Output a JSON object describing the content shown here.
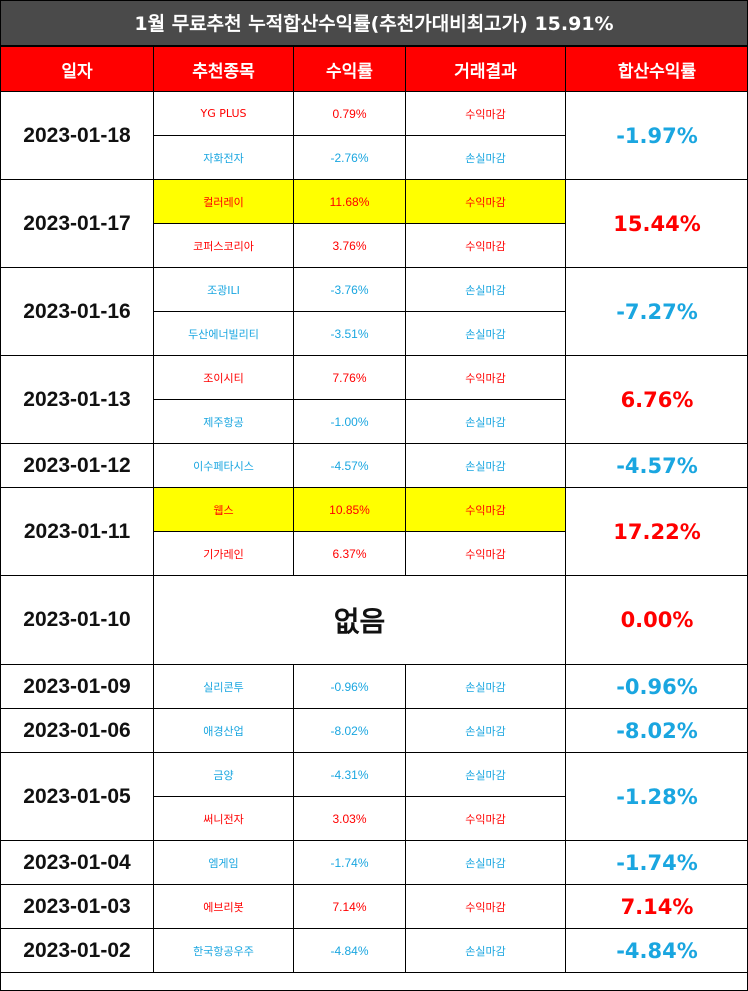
{
  "title": "1월 무료추천 누적합산수익률(추천가대비최고가) 15.91%",
  "headers": [
    "일자",
    "추천종목",
    "수익률",
    "거래결과",
    "합산수익률"
  ],
  "colors": {
    "header_bg": "#ff0000",
    "title_bg": "#4a4a4a",
    "gain": "#ff0000",
    "loss": "#1aa6e0",
    "highlight": "#ffff00"
  },
  "days": [
    {
      "date": "2023-01-18",
      "total": "-1.97%",
      "total_sign": "neg",
      "stocks": [
        {
          "name": "YG PLUS",
          "ret": "0.79%",
          "result": "수익마감",
          "sign": "pos",
          "highlight": false
        },
        {
          "name": "자화전자",
          "ret": "-2.76%",
          "result": "손실마감",
          "sign": "neg",
          "highlight": false
        }
      ]
    },
    {
      "date": "2023-01-17",
      "total": "15.44%",
      "total_sign": "pos",
      "stocks": [
        {
          "name": "컬러레이",
          "ret": "11.68%",
          "result": "수익마감",
          "sign": "pos",
          "highlight": true
        },
        {
          "name": "코퍼스코리아",
          "ret": "3.76%",
          "result": "수익마감",
          "sign": "pos",
          "highlight": false
        }
      ]
    },
    {
      "date": "2023-01-16",
      "total": "-7.27%",
      "total_sign": "neg",
      "stocks": [
        {
          "name": "조광ILI",
          "ret": "-3.76%",
          "result": "손실마감",
          "sign": "neg",
          "highlight": false
        },
        {
          "name": "두산에너빌리티",
          "ret": "-3.51%",
          "result": "손실마감",
          "sign": "neg",
          "highlight": false
        }
      ]
    },
    {
      "date": "2023-01-13",
      "total": "6.76%",
      "total_sign": "pos",
      "stocks": [
        {
          "name": "조이시티",
          "ret": "7.76%",
          "result": "수익마감",
          "sign": "pos",
          "highlight": false
        },
        {
          "name": "제주항공",
          "ret": "-1.00%",
          "result": "손실마감",
          "sign": "neg",
          "highlight": false
        }
      ]
    },
    {
      "date": "2023-01-12",
      "total": "-4.57%",
      "total_sign": "neg",
      "stocks": [
        {
          "name": "이수페타시스",
          "ret": "-4.57%",
          "result": "손실마감",
          "sign": "neg",
          "highlight": false
        }
      ]
    },
    {
      "date": "2023-01-11",
      "total": "17.22%",
      "total_sign": "pos",
      "stocks": [
        {
          "name": "웹스",
          "ret": "10.85%",
          "result": "수익마감",
          "sign": "pos",
          "highlight": true
        },
        {
          "name": "기가레인",
          "ret": "6.37%",
          "result": "수익마감",
          "sign": "pos",
          "highlight": false
        }
      ]
    },
    {
      "date": "2023-01-10",
      "total": "0.00%",
      "total_sign": "pos",
      "none": "없음",
      "stocks": []
    },
    {
      "date": "2023-01-09",
      "total": "-0.96%",
      "total_sign": "neg",
      "stocks": [
        {
          "name": "실리콘투",
          "ret": "-0.96%",
          "result": "손실마감",
          "sign": "neg",
          "highlight": false
        }
      ]
    },
    {
      "date": "2023-01-06",
      "total": "-8.02%",
      "total_sign": "neg",
      "stocks": [
        {
          "name": "애경산업",
          "ret": "-8.02%",
          "result": "손실마감",
          "sign": "neg",
          "highlight": false
        }
      ]
    },
    {
      "date": "2023-01-05",
      "total": "-1.28%",
      "total_sign": "neg",
      "stocks": [
        {
          "name": "금양",
          "ret": "-4.31%",
          "result": "손실마감",
          "sign": "neg",
          "highlight": false
        },
        {
          "name": "써니전자",
          "ret": "3.03%",
          "result": "수익마감",
          "sign": "pos",
          "highlight": false
        }
      ]
    },
    {
      "date": "2023-01-04",
      "total": "-1.74%",
      "total_sign": "neg",
      "stocks": [
        {
          "name": "엠게임",
          "ret": "-1.74%",
          "result": "손실마감",
          "sign": "neg",
          "highlight": false
        }
      ]
    },
    {
      "date": "2023-01-03",
      "total": "7.14%",
      "total_sign": "pos",
      "stocks": [
        {
          "name": "에브리봇",
          "ret": "7.14%",
          "result": "수익마감",
          "sign": "pos",
          "highlight": false
        }
      ]
    },
    {
      "date": "2023-01-02",
      "total": "-4.84%",
      "total_sign": "neg",
      "stocks": [
        {
          "name": "한국항공우주",
          "ret": "-4.84%",
          "result": "손실마감",
          "sign": "neg",
          "highlight": false
        }
      ]
    }
  ]
}
